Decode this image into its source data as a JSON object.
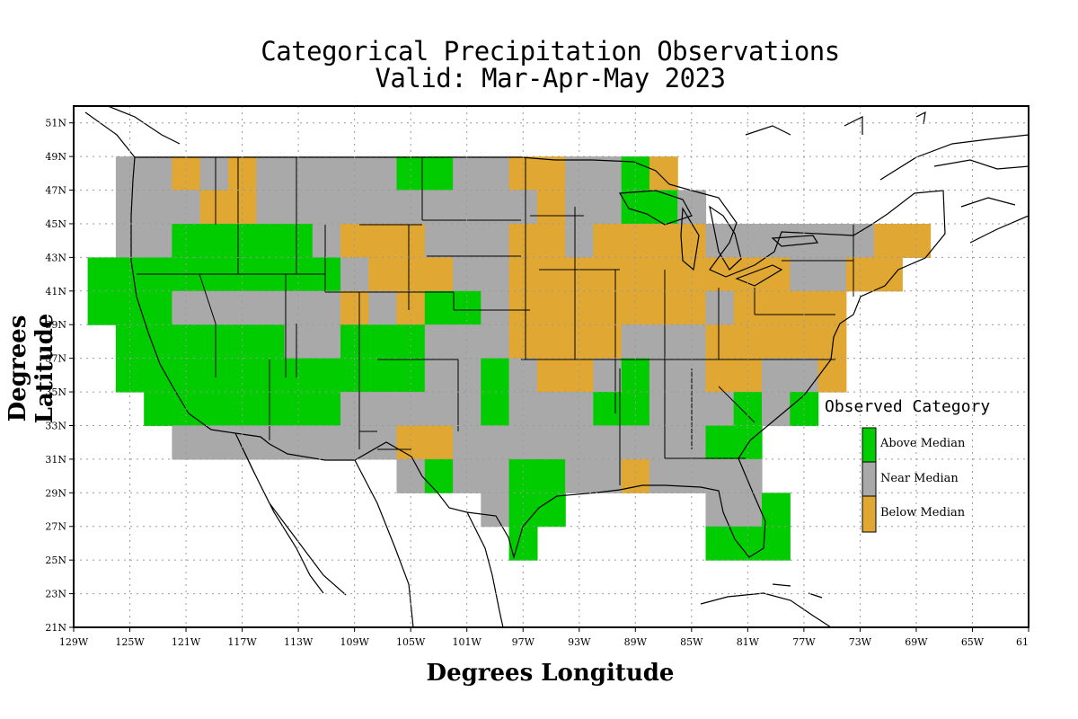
{
  "title_line1": "Categorical Precipitation Observations",
  "title_line2": "Valid: Mar-Apr-May 2023",
  "axes": {
    "ylabel": "Degrees Latitude",
    "xlabel": "Degrees Longitude",
    "lat_ticks": [
      "51N",
      "49N",
      "47N",
      "45N",
      "43N",
      "41N",
      "39N",
      "37N",
      "35N",
      "33N",
      "31N",
      "29N",
      "27N",
      "25N",
      "23N",
      "21N"
    ],
    "lon_ticks": [
      "129W",
      "125W",
      "121W",
      "117W",
      "113W",
      "109W",
      "105W",
      "101W",
      "97W",
      "93W",
      "89W",
      "85W",
      "81W",
      "77W",
      "73W",
      "69W",
      "65W",
      "61"
    ]
  },
  "legend": {
    "title": "Observed Category",
    "items": [
      {
        "label": "Above Median",
        "color": "#00cc00"
      },
      {
        "label": "Near Median",
        "color": "#a9a9a9"
      },
      {
        "label": "Below Median",
        "color": "#e0a832"
      }
    ]
  },
  "chart_data": {
    "type": "heatmap",
    "title": "Categorical Precipitation Observations Valid: Mar-Apr-May 2023",
    "xlabel": "Degrees Longitude",
    "ylabel": "Degrees Latitude",
    "xlim": [
      -129,
      -61
    ],
    "ylim": [
      21,
      52
    ],
    "grid": true,
    "legend_position": "right",
    "cell_deg": 2,
    "categories": {
      "A": "Above Median",
      "N": "Near Median",
      "B": "Below Median"
    },
    "cells": [
      {
        "lat": 48,
        "lon_w": [
          -125,
          -123,
          -121,
          -119,
          -117,
          -115,
          -113,
          -111,
          -109,
          -107,
          -105,
          -103,
          -101,
          -99,
          -97,
          -95,
          -93,
          -91,
          -89,
          -87
        ],
        "cat": "NNBNBNNNNNAANNBBNNAB"
      },
      {
        "lat": 46,
        "lon_w": [
          -125,
          -123,
          -121,
          -119,
          -117,
          -115,
          -113,
          -111,
          -109,
          -107,
          -105,
          -103,
          -101,
          -99,
          -97,
          -95,
          -93,
          -91,
          -89,
          -87,
          -85
        ],
        "cat": "NNNBBNNNNNNNNNNBNNAAN"
      },
      {
        "lat": 44,
        "lon_w": [
          -125,
          -123,
          -121,
          -119,
          -117,
          -115,
          -113,
          -111,
          -109,
          -107,
          -105,
          -103,
          -101,
          -99,
          -97,
          -95,
          -93,
          -91,
          -89,
          -87,
          -85,
          -83,
          -81,
          -79,
          -77,
          -75,
          -73,
          -71,
          -69
        ],
        "cat": "NNAAAAANBBBNNNBBNBBBBNNNNNNBB"
      },
      {
        "lat": 42,
        "lon_w": [
          -127,
          -125,
          -123,
          -121,
          -119,
          -117,
          -115,
          -113,
          -111,
          -109,
          -107,
          -105,
          -103,
          -101,
          -99,
          -97,
          -95,
          -93,
          -91,
          -89,
          -87,
          -85,
          -83,
          -81,
          -79,
          -77,
          -75,
          -73,
          -71
        ],
        "cat": "AAAAAAAAANBBBNNBBBBBBBBBBNNBB"
      },
      {
        "lat": 40,
        "lon_w": [
          -127,
          -125,
          -123,
          -121,
          -119,
          -117,
          -115,
          -113,
          -111,
          -109,
          -107,
          -105,
          -103,
          -101,
          -99,
          -97,
          -95,
          -93,
          -91,
          -89,
          -87,
          -85,
          -83,
          -81,
          -79,
          -77,
          -75
        ],
        "cat": "AAANNNNNNBNBAANBBBBBBBNBBBB"
      },
      {
        "lat": 38,
        "lon_w": [
          -125,
          -123,
          -121,
          -119,
          -117,
          -115,
          -113,
          -111,
          -109,
          -107,
          -105,
          -103,
          -101,
          -99,
          -97,
          -95,
          -93,
          -91,
          -89,
          -87,
          -85,
          -83,
          -81,
          -79,
          -77,
          -75
        ],
        "cat": "AAAAAANNAAANNNBBBBNNNBBBBB"
      },
      {
        "lat": 36,
        "lon_w": [
          -125,
          -123,
          -121,
          -119,
          -117,
          -115,
          -113,
          -111,
          -109,
          -107,
          -105,
          -103,
          -101,
          -99,
          -97,
          -95,
          -93,
          -91,
          -89,
          -87,
          -85,
          -83,
          -81,
          -79,
          -77,
          -75
        ],
        "cat": "AAAAAAAAAAANNANBBNANNBBNNB"
      },
      {
        "lat": 34,
        "lon_w": [
          -123,
          -121,
          -119,
          -117,
          -115,
          -113,
          -111,
          -109,
          -107,
          -105,
          -103,
          -101,
          -99,
          -97,
          -95,
          -93,
          -91,
          -89,
          -87,
          -85,
          -83,
          -81,
          -79,
          -77
        ],
        "cat": "AAAAAAANNNNNANNNAANNNANA"
      },
      {
        "lat": 32,
        "lon_w": [
          -121,
          -119,
          -117,
          -115,
          -113,
          -111,
          -109,
          -107,
          -105,
          -103,
          -101,
          -99,
          -97,
          -95,
          -93,
          -91,
          -89,
          -87,
          -85,
          -83,
          -81
        ],
        "cat": "NNNNNNNNBBNNNNNNNNNAA"
      },
      {
        "lat": 30,
        "lon_w": [
          -105,
          -103,
          -101,
          -99,
          -97,
          -95,
          -93,
          -91,
          -89,
          -87,
          -85,
          -83,
          -81
        ],
        "cat": "NANNAANNBNNNN"
      },
      {
        "lat": 28,
        "lon_w": [
          -99,
          -97,
          -95,
          -83,
          -81,
          -79
        ],
        "cat": "NAANNA"
      },
      {
        "lat": 26,
        "lon_w": [
          -97,
          -83,
          -81,
          -79
        ],
        "cat": "AAAA"
      }
    ]
  }
}
